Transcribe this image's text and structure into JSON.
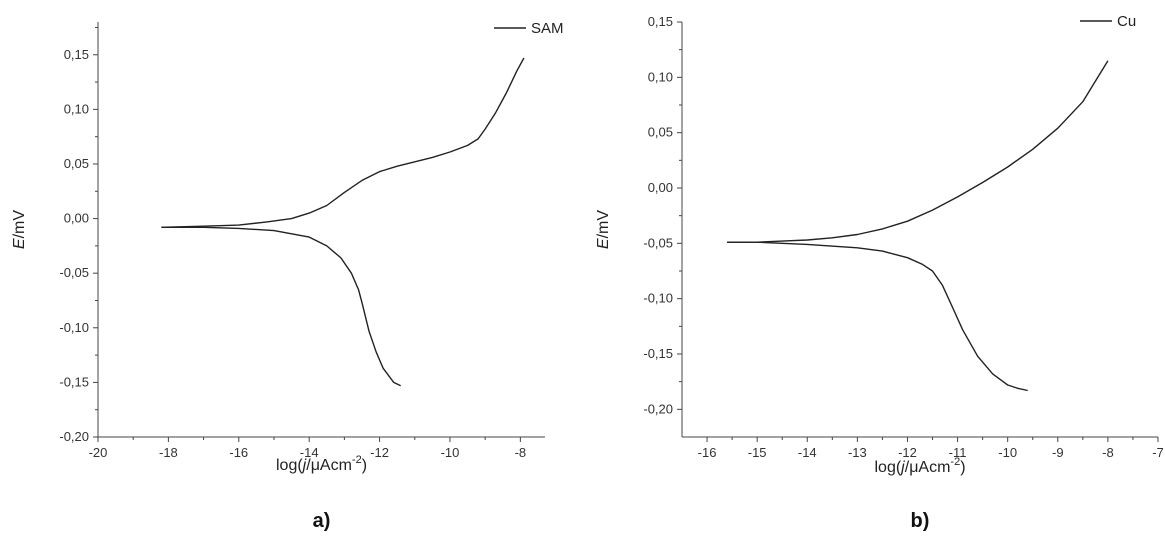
{
  "chart_data": [
    {
      "type": "line",
      "panel_label": "a)",
      "xlabel_prefix": "log(",
      "xlabel_italic": "j",
      "xlabel_mid": "/",
      "xlabel_mu": "μ",
      "xlabel_unit": "Acm",
      "xlabel_sup": "-2",
      "xlabel_suffix": ")",
      "ylabel_italic": "E",
      "ylabel_unit": "/mV",
      "xlim": [
        -20,
        -7.3
      ],
      "ylim": [
        -0.2,
        0.18
      ],
      "xticks": [
        -20,
        -18,
        -16,
        -14,
        -12,
        -10,
        -8
      ],
      "xtick_labels": [
        "-20",
        "-18",
        "-16",
        "-14",
        "-12",
        "-10",
        "-8"
      ],
      "yticks": [
        -0.2,
        -0.15,
        -0.1,
        -0.05,
        0.0,
        0.05,
        0.1,
        0.15
      ],
      "ytick_labels": [
        "-0,20",
        "-0,15",
        "-0,10",
        "-0,05",
        "0,00",
        "0,05",
        "0,10",
        "0,15"
      ],
      "legend": "top-right",
      "grid": false,
      "series": [
        {
          "name": "SAM",
          "branches": [
            {
              "x": [
                -18.2,
                -17.0,
                -16.0,
                -15.2,
                -14.5,
                -14.0,
                -13.5,
                -13.0,
                -12.5,
                -12.0,
                -11.5,
                -11.0,
                -10.5,
                -10.0,
                -9.5,
                -9.2,
                -9.0,
                -8.7,
                -8.4,
                -8.1,
                -7.9
              ],
              "y": [
                -0.008,
                -0.007,
                -0.006,
                -0.003,
                0.0,
                0.005,
                0.012,
                0.024,
                0.035,
                0.043,
                0.048,
                0.052,
                0.056,
                0.061,
                0.067,
                0.073,
                0.082,
                0.097,
                0.115,
                0.135,
                0.147
              ]
            },
            {
              "x": [
                -18.2,
                -17.0,
                -16.0,
                -15.0,
                -14.0,
                -13.5,
                -13.1,
                -12.8,
                -12.6,
                -12.5,
                -12.4,
                -12.3,
                -12.1,
                -11.9,
                -11.6,
                -11.4
              ],
              "y": [
                -0.008,
                -0.008,
                -0.009,
                -0.011,
                -0.017,
                -0.025,
                -0.036,
                -0.05,
                -0.065,
                -0.077,
                -0.09,
                -0.103,
                -0.122,
                -0.137,
                -0.15,
                -0.153
              ]
            }
          ]
        }
      ]
    },
    {
      "type": "line",
      "panel_label": "b)",
      "xlabel_prefix": "log(",
      "xlabel_italic": "j",
      "xlabel_mid": "/",
      "xlabel_mu": "μ",
      "xlabel_unit": "Acm",
      "xlabel_sup": "-2",
      "xlabel_suffix": ")",
      "ylabel_italic": "E",
      "ylabel_unit": "/mV",
      "xlim": [
        -16.5,
        -7
      ],
      "ylim": [
        -0.225,
        0.15
      ],
      "xticks": [
        -16,
        -15,
        -14,
        -13,
        -12,
        -11,
        -10,
        -9,
        -8,
        -7
      ],
      "xtick_labels": [
        "-16",
        "-15",
        "-14",
        "-13",
        "-12",
        "-11",
        "-10",
        "-9",
        "-8",
        "-7"
      ],
      "yticks": [
        -0.2,
        -0.15,
        -0.1,
        -0.05,
        0.0,
        0.05,
        0.1,
        0.15
      ],
      "ytick_labels": [
        "-0,20",
        "-0,15",
        "-0,10",
        "-0,05",
        "0,00",
        "0,05",
        "0,10",
        "0,15"
      ],
      "legend": "top-right",
      "grid": false,
      "series": [
        {
          "name": "Cu",
          "branches": [
            {
              "x": [
                -15.6,
                -15.0,
                -14.5,
                -14.0,
                -13.5,
                -13.0,
                -12.5,
                -12.0,
                -11.5,
                -11.0,
                -10.5,
                -10.0,
                -9.5,
                -9.0,
                -8.5,
                -8.0
              ],
              "y": [
                -0.049,
                -0.049,
                -0.048,
                -0.047,
                -0.045,
                -0.042,
                -0.037,
                -0.03,
                -0.02,
                -0.008,
                0.005,
                0.019,
                0.035,
                0.054,
                0.078,
                0.115
              ]
            },
            {
              "x": [
                -15.6,
                -15.0,
                -14.0,
                -13.0,
                -12.5,
                -12.0,
                -11.7,
                -11.5,
                -11.3,
                -11.1,
                -10.9,
                -10.6,
                -10.3,
                -10.0,
                -9.8,
                -9.6
              ],
              "y": [
                -0.049,
                -0.049,
                -0.051,
                -0.054,
                -0.057,
                -0.063,
                -0.069,
                -0.075,
                -0.088,
                -0.108,
                -0.128,
                -0.152,
                -0.168,
                -0.178,
                -0.181,
                -0.183
              ]
            }
          ]
        }
      ]
    }
  ]
}
